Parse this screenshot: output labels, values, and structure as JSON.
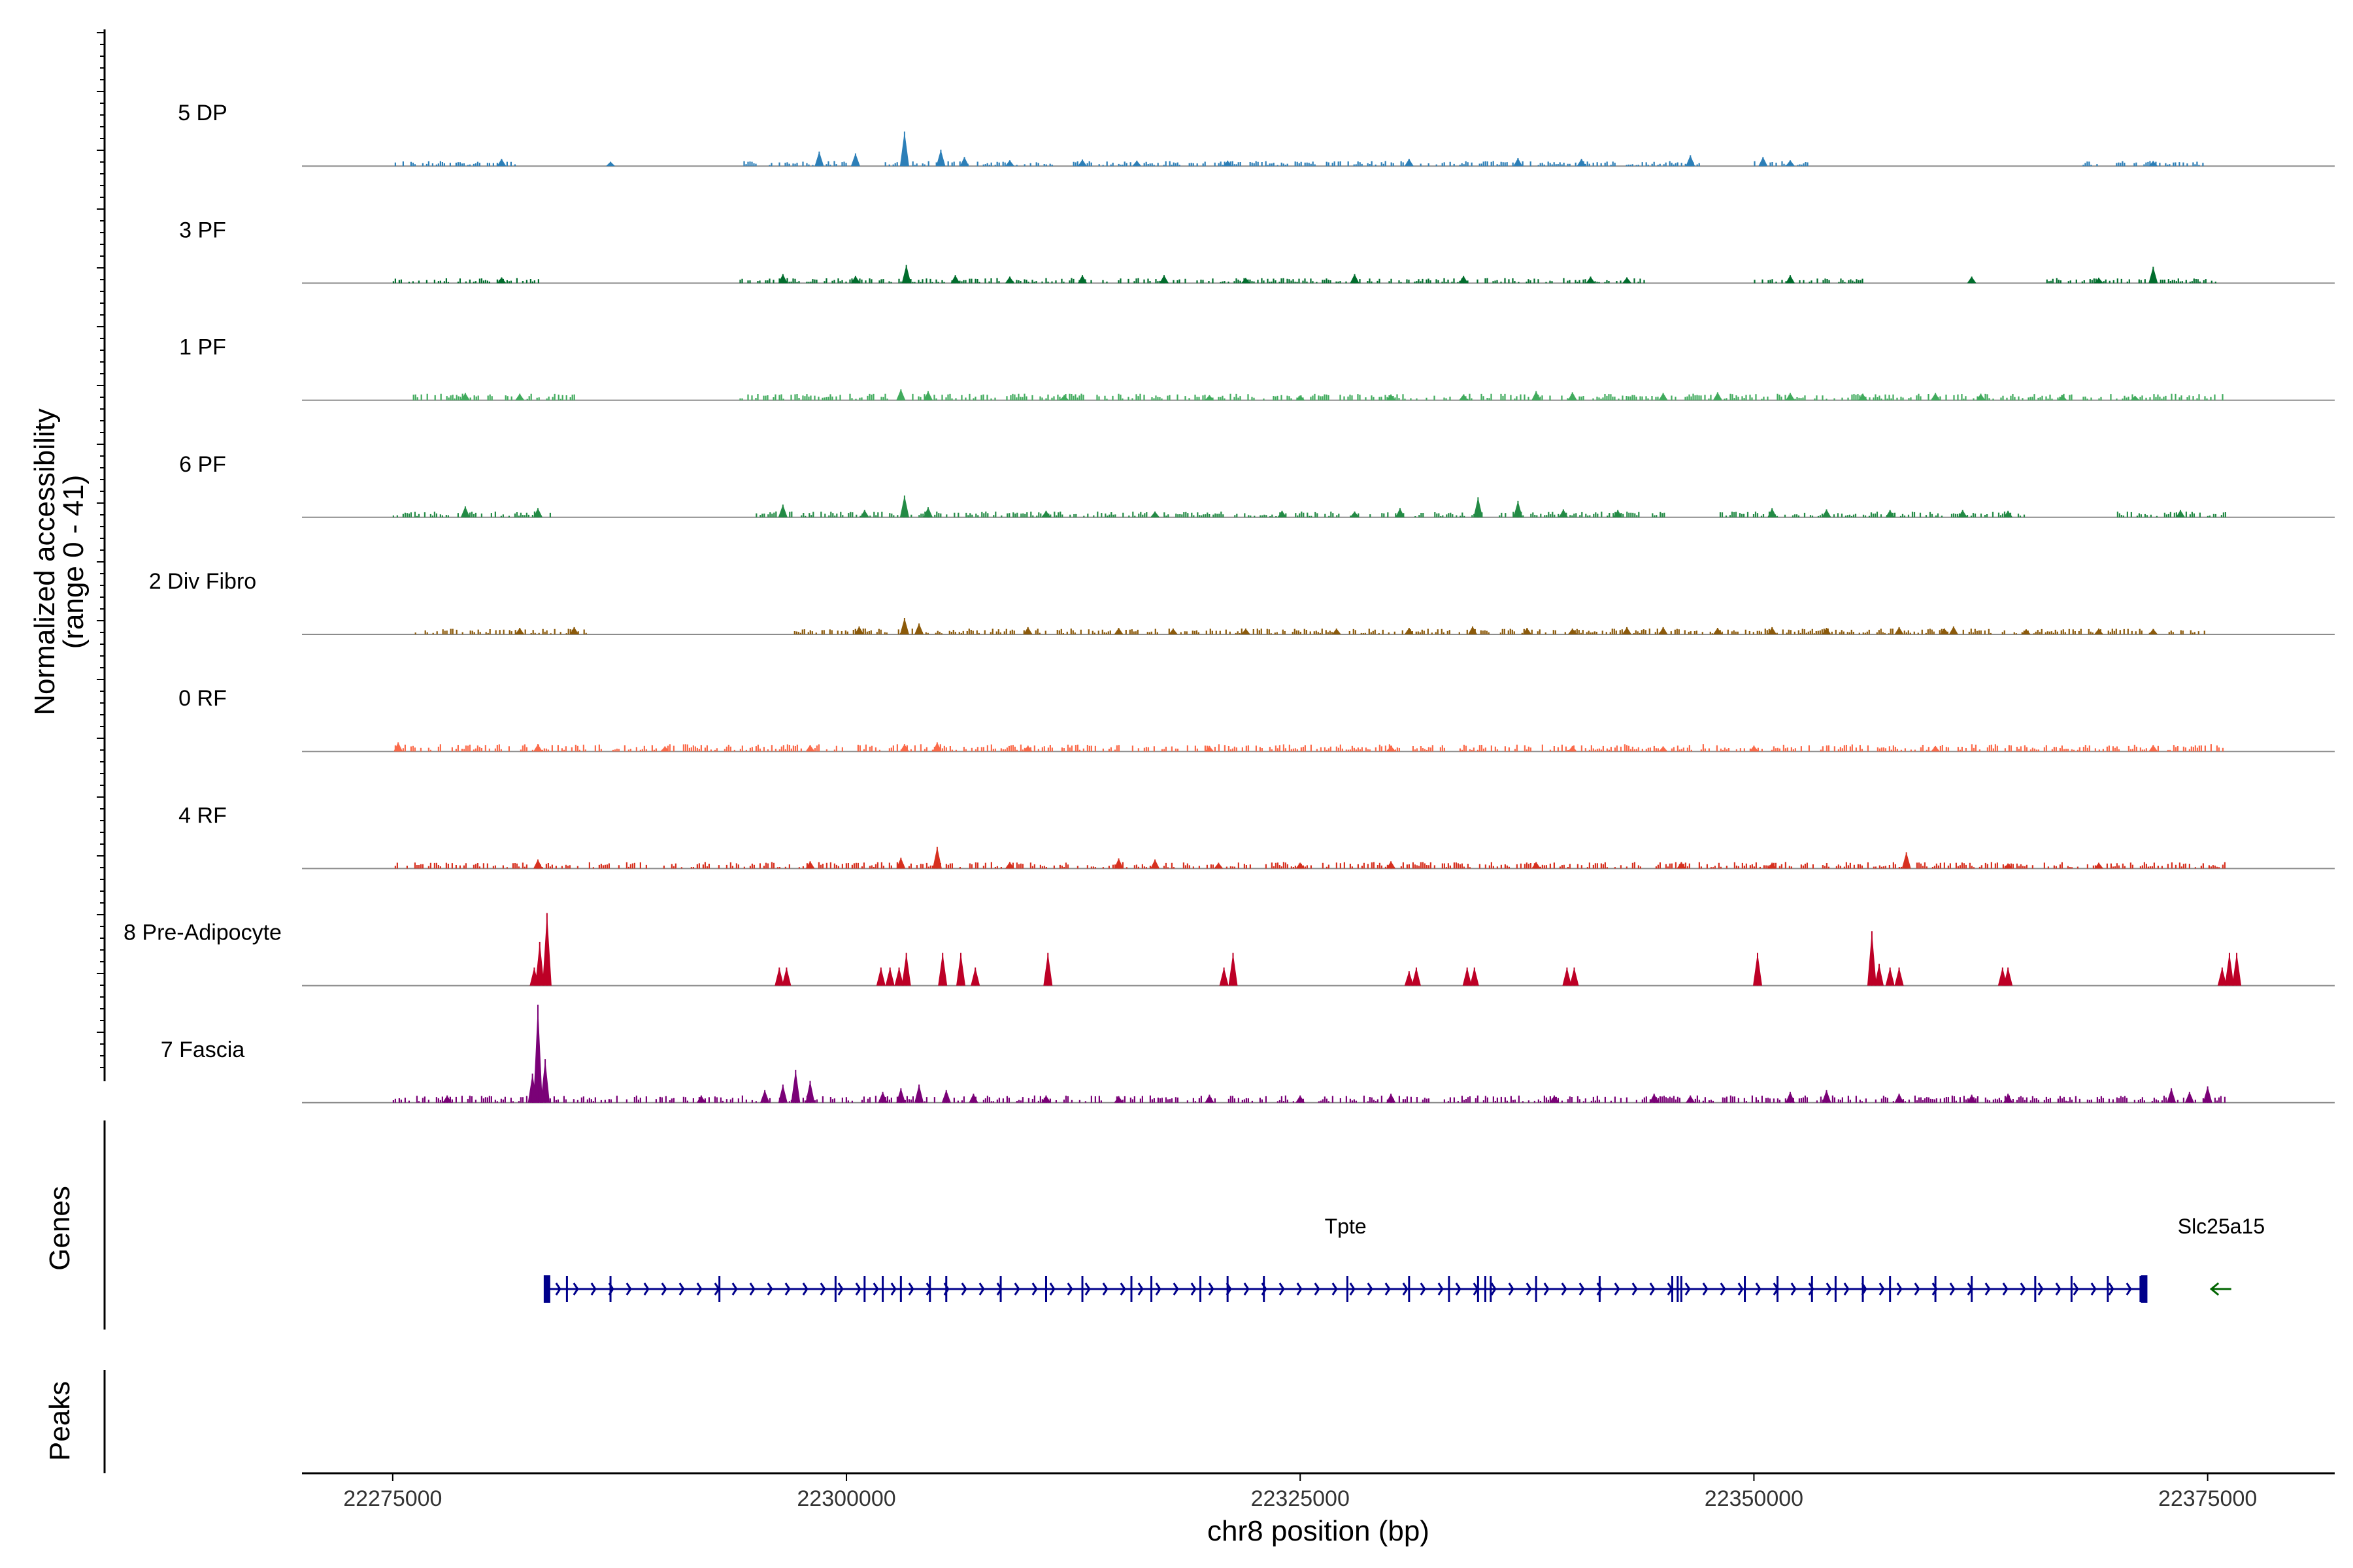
{
  "chart_data": {
    "type": "area",
    "title": "",
    "ylabel_line1": "Normalized accessibility",
    "ylabel_line2": "(range 0 - 41)",
    "xlabel": "chr8 position (bp)",
    "xlim": [
      22270000,
      22382000
    ],
    "xticks": [
      22275000,
      22300000,
      22325000,
      22350000,
      22375000
    ],
    "xtick_labels": [
      "22275000",
      "22300000",
      "22325000",
      "22350000",
      "22375000"
    ],
    "ylim": [
      0,
      41
    ],
    "series": [
      {
        "name": "5 DP",
        "color": "#2c7fb8",
        "regions": [
          [
            22275000,
            22282000
          ],
          [
            22294000,
            22300000
          ],
          [
            22302000,
            22347000
          ],
          [
            22350000,
            22353000
          ],
          [
            22368000,
            22375000
          ]
        ],
        "baseline": 0.7,
        "peaks": [
          [
            22303200,
            9.5
          ],
          [
            22305200,
            4.5
          ],
          [
            22298500,
            4.0
          ],
          [
            22300500,
            3.5
          ],
          [
            22306500,
            2.5
          ],
          [
            22346500,
            3.0
          ],
          [
            22337000,
            2.2
          ],
          [
            22331000,
            2.0
          ],
          [
            22350500,
            2.5
          ],
          [
            22281000,
            2.0
          ],
          [
            22313000,
            1.8
          ],
          [
            22321000,
            1.5
          ],
          [
            22340500,
            2.0
          ],
          [
            22352000,
            1.6
          ],
          [
            22316000,
            1.5
          ],
          [
            22309000,
            1.6
          ],
          [
            22372000,
            1.4
          ],
          [
            22287000,
            1.2
          ]
        ]
      },
      {
        "name": "3 PF",
        "color": "#006d2c",
        "regions": [
          [
            22275000,
            22283000
          ],
          [
            22294000,
            22344000
          ],
          [
            22350000,
            22356000
          ],
          [
            22366000,
            22375500
          ]
        ],
        "baseline": 0.7,
        "peaks": [
          [
            22303300,
            5.0
          ],
          [
            22372000,
            4.5
          ],
          [
            22296500,
            2.5
          ],
          [
            22313000,
            2.2
          ],
          [
            22300500,
            2.0
          ],
          [
            22306000,
            2.2
          ],
          [
            22309000,
            1.8
          ],
          [
            22317500,
            2.2
          ],
          [
            22328000,
            2.5
          ],
          [
            22334000,
            2.0
          ],
          [
            22341000,
            1.8
          ],
          [
            22343000,
            1.6
          ],
          [
            22352000,
            2.2
          ],
          [
            22362000,
            1.8
          ],
          [
            22369000,
            1.5
          ],
          [
            22281000,
            1.6
          ],
          [
            22322000,
            1.4
          ]
        ]
      },
      {
        "name": "1 PF",
        "color": "#41ab5d",
        "regions": [
          [
            22276000,
            22285000
          ],
          [
            22294000,
            22376000
          ]
        ],
        "baseline": 0.9,
        "peaks": [
          [
            22303000,
            3.0
          ],
          [
            22304500,
            2.5
          ],
          [
            22279000,
            2.0
          ],
          [
            22282000,
            1.8
          ],
          [
            22338000,
            2.5
          ],
          [
            22340000,
            2.2
          ],
          [
            22345000,
            2.0
          ],
          [
            22348000,
            2.2
          ],
          [
            22352000,
            2.0
          ],
          [
            22356000,
            1.8
          ],
          [
            22360000,
            2.0
          ],
          [
            22362500,
            1.8
          ],
          [
            22330000,
            1.6
          ],
          [
            22334000,
            1.6
          ],
          [
            22312000,
            1.4
          ],
          [
            22320000,
            1.4
          ],
          [
            22325000,
            1.3
          ],
          [
            22367000,
            1.4
          ],
          [
            22371000,
            1.2
          ]
        ]
      },
      {
        "name": "6 PF",
        "color": "#238b45",
        "regions": [
          [
            22275000,
            22284000
          ],
          [
            22295000,
            22345500
          ],
          [
            22348000,
            22365000
          ],
          [
            22370000,
            22376000
          ]
        ],
        "baseline": 0.8,
        "peaks": [
          [
            22303200,
            6.0
          ],
          [
            22334800,
            5.5
          ],
          [
            22337000,
            4.5
          ],
          [
            22296500,
            3.5
          ],
          [
            22279000,
            3.0
          ],
          [
            22283000,
            2.5
          ],
          [
            22304500,
            2.8
          ],
          [
            22301000,
            2.0
          ],
          [
            22330500,
            2.5
          ],
          [
            22339500,
            2.2
          ],
          [
            22342500,
            2.0
          ],
          [
            22351000,
            2.5
          ],
          [
            22354000,
            2.2
          ],
          [
            22357500,
            2.0
          ],
          [
            22361500,
            2.0
          ],
          [
            22364000,
            1.8
          ],
          [
            22373500,
            2.0
          ],
          [
            22311000,
            1.8
          ],
          [
            22317000,
            1.6
          ],
          [
            22324000,
            1.8
          ],
          [
            22328000,
            1.6
          ]
        ]
      },
      {
        "name": "2 Div Fibro",
        "color": "#8c5a0a",
        "regions": [
          [
            22276000,
            22286000
          ],
          [
            22297000,
            22375000
          ]
        ],
        "baseline": 0.8,
        "peaks": [
          [
            22303200,
            4.5
          ],
          [
            22304000,
            3.0
          ],
          [
            22300700,
            2.2
          ],
          [
            22285000,
            2.0
          ],
          [
            22282000,
            1.8
          ],
          [
            22310000,
            2.0
          ],
          [
            22315000,
            1.8
          ],
          [
            22318000,
            1.6
          ],
          [
            22322000,
            1.6
          ],
          [
            22327000,
            1.6
          ],
          [
            22331000,
            1.8
          ],
          [
            22334500,
            2.2
          ],
          [
            22337500,
            1.8
          ],
          [
            22340000,
            1.6
          ],
          [
            22343000,
            2.0
          ],
          [
            22345000,
            2.0
          ],
          [
            22348000,
            1.8
          ],
          [
            22351000,
            2.0
          ],
          [
            22354000,
            1.8
          ],
          [
            22358000,
            2.0
          ],
          [
            22360500,
            1.6
          ],
          [
            22365000,
            1.4
          ],
          [
            22369000,
            1.6
          ],
          [
            22372000,
            1.5
          ],
          [
            22361000,
            2.2
          ]
        ]
      },
      {
        "name": "0 RF",
        "color": "#fb6a4a",
        "regions": [
          [
            22275000,
            22376000
          ]
        ],
        "baseline": 1.0,
        "peaks": [
          [
            22275300,
            2.5
          ],
          [
            22283000,
            2.0
          ],
          [
            22305000,
            2.5
          ],
          [
            22303200,
            2.0
          ],
          [
            22298000,
            1.8
          ],
          [
            22310000,
            1.6
          ],
          [
            22320000,
            1.5
          ],
          [
            22330000,
            1.6
          ],
          [
            22340000,
            1.5
          ],
          [
            22350000,
            1.6
          ],
          [
            22360000,
            1.5
          ],
          [
            22372000,
            1.8
          ],
          [
            22290000,
            1.4
          ],
          [
            22345000,
            1.4
          ]
        ]
      },
      {
        "name": "4 RF",
        "color": "#d7301f",
        "regions": [
          [
            22275000,
            22376000
          ]
        ],
        "baseline": 0.9,
        "peaks": [
          [
            22305000,
            6.0
          ],
          [
            22303000,
            3.0
          ],
          [
            22283000,
            2.5
          ],
          [
            22315000,
            2.8
          ],
          [
            22317000,
            2.5
          ],
          [
            22358400,
            4.5
          ],
          [
            22298000,
            2.0
          ],
          [
            22330000,
            2.0
          ],
          [
            22338000,
            1.8
          ],
          [
            22346000,
            1.8
          ],
          [
            22351000,
            1.6
          ],
          [
            22309000,
            1.8
          ],
          [
            22325000,
            1.6
          ],
          [
            22320500,
            1.6
          ],
          [
            22369000,
            1.6
          ],
          [
            22364000,
            1.4
          ]
        ]
      },
      {
        "name": "8 Pre-Adipocyte",
        "color": "#bd0026",
        "regions": [],
        "baseline": 0,
        "peaks": [
          [
            22283500,
            20.0
          ],
          [
            22283100,
            12.0
          ],
          [
            22282800,
            5.0
          ],
          [
            22296300,
            5.0
          ],
          [
            22296700,
            5.0
          ],
          [
            22301900,
            5.0
          ],
          [
            22302400,
            5.0
          ],
          [
            22302900,
            5.0
          ],
          [
            22303300,
            9.0
          ],
          [
            22305300,
            9.0
          ],
          [
            22306300,
            9.0
          ],
          [
            22307100,
            5.0
          ],
          [
            22311100,
            9.0
          ],
          [
            22320800,
            5.0
          ],
          [
            22321300,
            9.0
          ],
          [
            22331000,
            4.0
          ],
          [
            22331400,
            5.0
          ],
          [
            22334200,
            5.0
          ],
          [
            22334600,
            5.0
          ],
          [
            22339700,
            5.0
          ],
          [
            22340100,
            5.0
          ],
          [
            22350200,
            9.0
          ],
          [
            22356500,
            15.0
          ],
          [
            22356900,
            6.0
          ],
          [
            22357500,
            5.0
          ],
          [
            22358000,
            5.0
          ],
          [
            22363700,
            5.0
          ],
          [
            22364000,
            5.0
          ],
          [
            22376200,
            9.0
          ],
          [
            22376600,
            9.0
          ],
          [
            22375800,
            5.0
          ]
        ]
      },
      {
        "name": "7 Fascia",
        "color": "#7a0177",
        "regions": [
          [
            22275000,
            22376000
          ]
        ],
        "baseline": 1.0,
        "peaks": [
          [
            22283000,
            27.0
          ],
          [
            22283400,
            12.0
          ],
          [
            22282700,
            8.0
          ],
          [
            22297200,
            9.0
          ],
          [
            22296500,
            5.0
          ],
          [
            22298000,
            6.0
          ],
          [
            22295500,
            3.5
          ],
          [
            22304000,
            5.0
          ],
          [
            22303000,
            4.0
          ],
          [
            22302000,
            3.0
          ],
          [
            22305500,
            3.5
          ],
          [
            22307000,
            2.5
          ],
          [
            22278000,
            2.0
          ],
          [
            22292000,
            2.0
          ],
          [
            22330000,
            2.5
          ],
          [
            22339000,
            2.0
          ],
          [
            22344500,
            2.5
          ],
          [
            22346500,
            2.0
          ],
          [
            22352000,
            3.0
          ],
          [
            22354000,
            3.5
          ],
          [
            22358000,
            2.5
          ],
          [
            22362000,
            2.2
          ],
          [
            22364000,
            2.5
          ],
          [
            22373000,
            4.0
          ],
          [
            22375000,
            4.5
          ],
          [
            22374000,
            3.0
          ],
          [
            22311000,
            2.0
          ],
          [
            22320000,
            2.2
          ],
          [
            22325000,
            2.0
          ],
          [
            22315000,
            1.8
          ]
        ]
      }
    ],
    "genes_label": "Genes",
    "peaks_label": "Peaks",
    "genes": [
      {
        "name": "Tpte",
        "start": 22283500,
        "end": 22371500,
        "strand": "+",
        "color": "#00008b",
        "exons": [
          22283500,
          22284600,
          22287000,
          22293000,
          22299400,
          22301000,
          22302000,
          22303000,
          22304600,
          22305500,
          22308500,
          22311000,
          22313000,
          22315700,
          22316800,
          22319500,
          22321000,
          22323000,
          22327600,
          22331000,
          22333200,
          22334800,
          22335200,
          22335500,
          22338000,
          22341500,
          22345500,
          22345800,
          22346000,
          22349500,
          22351300,
          22353200,
          22354500,
          22356000,
          22357500,
          22360000,
          22362000,
          22365500,
          22367500,
          22369500,
          22371300
        ]
      },
      {
        "name": "Slc25a15",
        "start": 22375200,
        "end": 22376300,
        "strand": "-",
        "color": "#006400",
        "exons": []
      }
    ]
  }
}
